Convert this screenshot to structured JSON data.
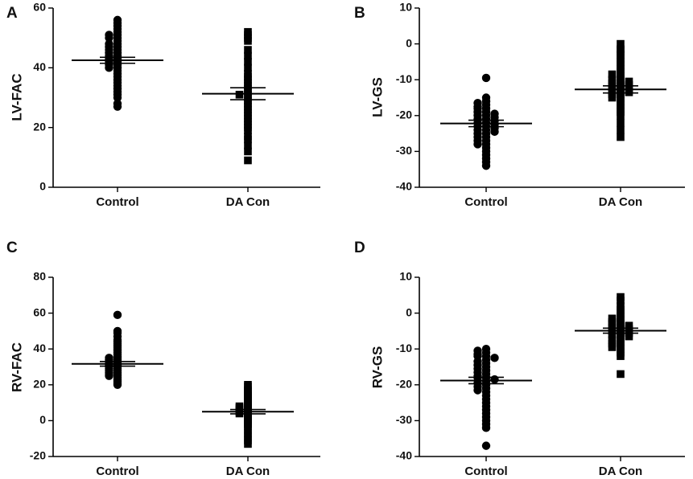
{
  "figure": {
    "background": "#ffffff",
    "ink": "#000000"
  },
  "chart_data": [
    {
      "panel": "A",
      "type": "scatter",
      "ylabel": "LV-FAC",
      "ylim": [
        0,
        60
      ],
      "yticks": [
        0,
        20,
        40,
        60
      ],
      "categories": [
        "Control",
        "DA Con"
      ],
      "groups": [
        {
          "name": "Control",
          "marker": "circle",
          "mean": 42.5,
          "sem": 1.0,
          "values": [
            56,
            55,
            54,
            53,
            52,
            51,
            51,
            50,
            50,
            49,
            48,
            48,
            47,
            47,
            46,
            46,
            45,
            45,
            44,
            44,
            43,
            43,
            42,
            42,
            41,
            41,
            40,
            40,
            39,
            38,
            37,
            36,
            35,
            34,
            33,
            32,
            31,
            30,
            28,
            27
          ]
        },
        {
          "name": "DA Con",
          "marker": "square",
          "mean": 31.3,
          "sem": 2.0,
          "values": [
            52,
            51,
            50,
            49,
            46,
            44,
            42,
            40,
            38,
            37,
            36,
            35,
            34,
            33,
            32,
            31,
            31,
            30,
            29,
            28,
            27,
            26,
            25,
            24,
            23,
            22,
            21,
            20,
            19,
            17,
            16,
            14,
            12,
            9
          ]
        }
      ]
    },
    {
      "panel": "B",
      "type": "scatter",
      "ylabel": "LV-GS",
      "ylim": [
        -40,
        10
      ],
      "yticks": [
        -40,
        -30,
        -20,
        -10,
        0,
        10
      ],
      "categories": [
        "Control",
        "DA Con"
      ],
      "groups": [
        {
          "name": "Control",
          "marker": "circle",
          "mean": -22.2,
          "sem": 0.9,
          "values": [
            -9.5,
            -15,
            -16,
            -16.5,
            -17,
            -17.5,
            -18,
            -18,
            -19,
            -19,
            -19.5,
            -20,
            -20,
            -20.5,
            -21,
            -21,
            -21.5,
            -22,
            -22,
            -22.5,
            -23,
            -23,
            -23.5,
            -24,
            -24,
            -24.5,
            -25,
            -25,
            -26,
            -26,
            -27,
            -27,
            -28,
            -28,
            -29,
            -30,
            -31,
            -32,
            -33,
            -34
          ]
        },
        {
          "name": "DA Con",
          "marker": "square",
          "mean": -12.7,
          "sem": 1.0,
          "values": [
            0,
            -1.5,
            -2,
            -3,
            -4,
            -5,
            -6,
            -7,
            -8,
            -8.5,
            -9,
            -10,
            -10,
            -10.5,
            -11,
            -11,
            -11.5,
            -12,
            -12,
            -12.5,
            -13,
            -13,
            -13.5,
            -14,
            -14,
            -15,
            -15,
            -16,
            -17,
            -18,
            -19,
            -20,
            -22,
            -24,
            -26
          ]
        }
      ]
    },
    {
      "panel": "C",
      "type": "scatter",
      "ylabel": "RV-FAC",
      "ylim": [
        -20,
        80
      ],
      "yticks": [
        -20,
        0,
        20,
        40,
        60,
        80
      ],
      "categories": [
        "Control",
        "DA Con"
      ],
      "groups": [
        {
          "name": "Control",
          "marker": "circle",
          "mean": 31.7,
          "sem": 1.3,
          "values": [
            59,
            50,
            49,
            47,
            45,
            44,
            43,
            42,
            41,
            40,
            39,
            38,
            37,
            36,
            35,
            35,
            34,
            34,
            33,
            33,
            32,
            32,
            31,
            31,
            30,
            30,
            29,
            29,
            28,
            28,
            27,
            27,
            26,
            26,
            25,
            25,
            24,
            23,
            22,
            21,
            20
          ]
        },
        {
          "name": "DA Con",
          "marker": "square",
          "mean": 5.0,
          "sem": 1.2,
          "values": [
            20,
            19,
            17,
            16,
            15,
            14,
            13,
            12,
            11,
            10,
            9,
            8,
            8,
            7,
            7,
            6,
            6,
            5,
            5,
            4,
            4,
            3,
            2,
            1,
            0,
            -1,
            -2,
            -3,
            -5,
            -7,
            -9,
            -11,
            -13
          ]
        }
      ]
    },
    {
      "panel": "D",
      "type": "scatter",
      "ylabel": "RV-GS",
      "ylim": [
        -40,
        10
      ],
      "yticks": [
        -40,
        -30,
        -20,
        -10,
        0,
        10
      ],
      "categories": [
        "Control",
        "DA Con"
      ],
      "groups": [
        {
          "name": "Control",
          "marker": "circle",
          "mean": -18.8,
          "sem": 0.9,
          "values": [
            -10,
            -10.5,
            -11,
            -11.5,
            -12,
            -12,
            -12.5,
            -13,
            -13.5,
            -14,
            -14.5,
            -15,
            -15.5,
            -16,
            -16.5,
            -17,
            -17.5,
            -18,
            -18,
            -18.5,
            -19,
            -19.5,
            -20,
            -20.5,
            -21,
            -21.5,
            -22,
            -23,
            -24,
            -25,
            -26,
            -27,
            -28,
            -29,
            -30,
            -31,
            -32,
            -37
          ]
        },
        {
          "name": "DA Con",
          "marker": "square",
          "mean": -4.9,
          "sem": 0.7,
          "values": [
            4.5,
            3.5,
            2,
            1,
            0,
            -1,
            -1.5,
            -2,
            -2.5,
            -3,
            -3,
            -3.5,
            -4,
            -4,
            -4.5,
            -5,
            -5,
            -5.5,
            -6,
            -6,
            -6.5,
            -7,
            -7.5,
            -8,
            -8.5,
            -9,
            -9.5,
            -10,
            -11,
            -12,
            -17
          ]
        }
      ]
    }
  ]
}
